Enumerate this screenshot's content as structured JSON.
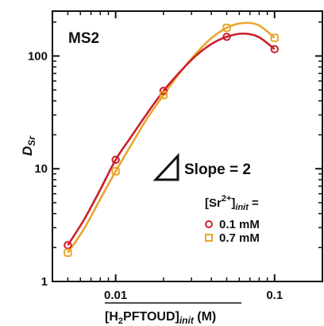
{
  "chart_data": {
    "type": "scatter",
    "title": "MS2",
    "xlabel": {
      "main": "[H",
      "sub": "2",
      "main2": "PFTOUD]",
      "italic_sub": "init",
      "unit": " (M)"
    },
    "ylabel": {
      "main": "D",
      "sub": "Sr"
    },
    "xscale": "log",
    "yscale": "log",
    "xlim": [
      0.004,
      0.2
    ],
    "ylim": [
      1,
      250
    ],
    "x_ticks": [
      {
        "value": 0.01,
        "label": "0.01"
      },
      {
        "value": 0.1,
        "label": "0.1"
      }
    ],
    "y_ticks": [
      {
        "value": 1,
        "label": "1"
      },
      {
        "value": 10,
        "label": "10"
      },
      {
        "value": 100,
        "label": "100"
      }
    ],
    "annotation": "Slope = 2",
    "legend": {
      "title_main": "[Sr",
      "title_sup": "2+",
      "title_bracket": "]",
      "title_italic": "init",
      "title_eq": " ="
    },
    "series": [
      {
        "name": "0.1 mM",
        "marker": "circle",
        "color": "#cc1f2b",
        "x": [
          0.005,
          0.01,
          0.02,
          0.05,
          0.1
        ],
        "y": [
          2.1,
          12,
          49,
          148,
          115
        ],
        "curve_x": [
          0.005,
          0.0063,
          0.0079,
          0.01,
          0.0126,
          0.0158,
          0.02,
          0.0251,
          0.0316,
          0.0398,
          0.05,
          0.063,
          0.079,
          0.1
        ],
        "curve_y": [
          2.1,
          3.5,
          6.3,
          12,
          19.5,
          31,
          49,
          71,
          99,
          127,
          148,
          158,
          148,
          115
        ]
      },
      {
        "name": "0.7 mM",
        "marker": "square",
        "color": "#e8a630",
        "x": [
          0.005,
          0.01,
          0.02,
          0.05,
          0.1
        ],
        "y": [
          1.8,
          9.5,
          45,
          178,
          145
        ],
        "curve_x": [
          0.005,
          0.0063,
          0.0079,
          0.01,
          0.0126,
          0.0158,
          0.02,
          0.0251,
          0.0316,
          0.0398,
          0.05,
          0.063,
          0.079,
          0.1
        ],
        "curve_y": [
          1.8,
          2.9,
          5.2,
          9.5,
          16.5,
          28,
          45,
          70,
          103,
          143,
          178,
          196,
          188,
          145
        ]
      }
    ]
  }
}
